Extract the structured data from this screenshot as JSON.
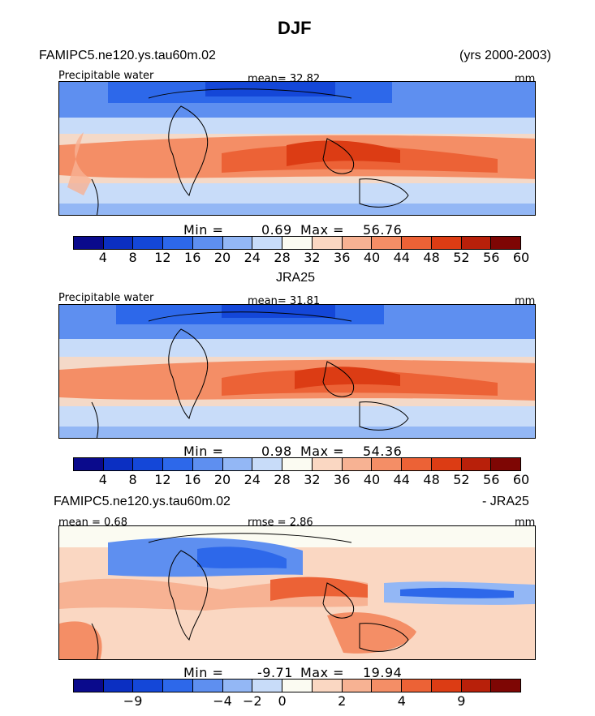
{
  "title": "DJF",
  "panel1": {
    "left_header": "FAMIPC5.ne120.ys.tau60m.02",
    "right_header": "(yrs 2000-2003)",
    "variable": "Precipitable water",
    "mean_text": "mean=  32.82",
    "units": "mm",
    "min_text": "Min =",
    "min_val": "0.69",
    "max_text": "Max =",
    "max_val": "56.76"
  },
  "panel2": {
    "center_header": "JRA25",
    "variable": "Precipitable water",
    "mean_text": "mean=  31.81",
    "units": "mm",
    "min_text": "Min =",
    "min_val": "0.98",
    "max_text": "Max =",
    "max_val": "54.36"
  },
  "panel3": {
    "left_header": "FAMIPC5.ne120.ys.tau60m.02",
    "right_header": "- JRA25",
    "mean_text": "mean =   0.68",
    "rmse_text": "rmse =   2.86",
    "units": "mm",
    "min_text": "Min =",
    "min_val": "-9.71",
    "max_text": "Max =",
    "max_val": "19.94"
  },
  "colorbar_colors": [
    "#0a0a8c",
    "#0b2fc2",
    "#1447d8",
    "#2d68ea",
    "#5e8ff0",
    "#93b7f5",
    "#c8dcf9",
    "#fbfbf2",
    "#fad7c2",
    "#f7b293",
    "#f48e66",
    "#ec6236",
    "#dc3c14",
    "#b8200a",
    "#7e0604"
  ],
  "colorbar_ticks_abs": [
    "4",
    "8",
    "12",
    "16",
    "20",
    "24",
    "28",
    "32",
    "36",
    "40",
    "44",
    "48",
    "52",
    "56",
    "60"
  ],
  "colorbar_ticks_diff": [
    "−9",
    "−4",
    "−2",
    "0",
    "2",
    "4",
    "9"
  ],
  "chart_data": [
    {
      "type": "heatmap",
      "title": "FAMIPC5.ne120.ys.tau60m.02",
      "subtitle": "Precipitable water",
      "units": "mm",
      "mean": 32.82,
      "min": 0.69,
      "max": 56.76,
      "levels": [
        4,
        8,
        12,
        16,
        20,
        24,
        28,
        32,
        36,
        40,
        44,
        48,
        52,
        56,
        60
      ]
    },
    {
      "type": "heatmap",
      "title": "JRA25",
      "subtitle": "Precipitable water",
      "units": "mm",
      "mean": 31.81,
      "min": 0.98,
      "max": 54.36,
      "levels": [
        4,
        8,
        12,
        16,
        20,
        24,
        28,
        32,
        36,
        40,
        44,
        48,
        52,
        56,
        60
      ]
    },
    {
      "type": "heatmap",
      "title": "FAMIPC5.ne120.ys.tau60m.02 - JRA25",
      "units": "mm",
      "mean": 0.68,
      "rmse": 2.86,
      "min": -9.71,
      "max": 19.94,
      "levels": [
        -9,
        -4,
        -2,
        0,
        2,
        4,
        9
      ]
    }
  ]
}
